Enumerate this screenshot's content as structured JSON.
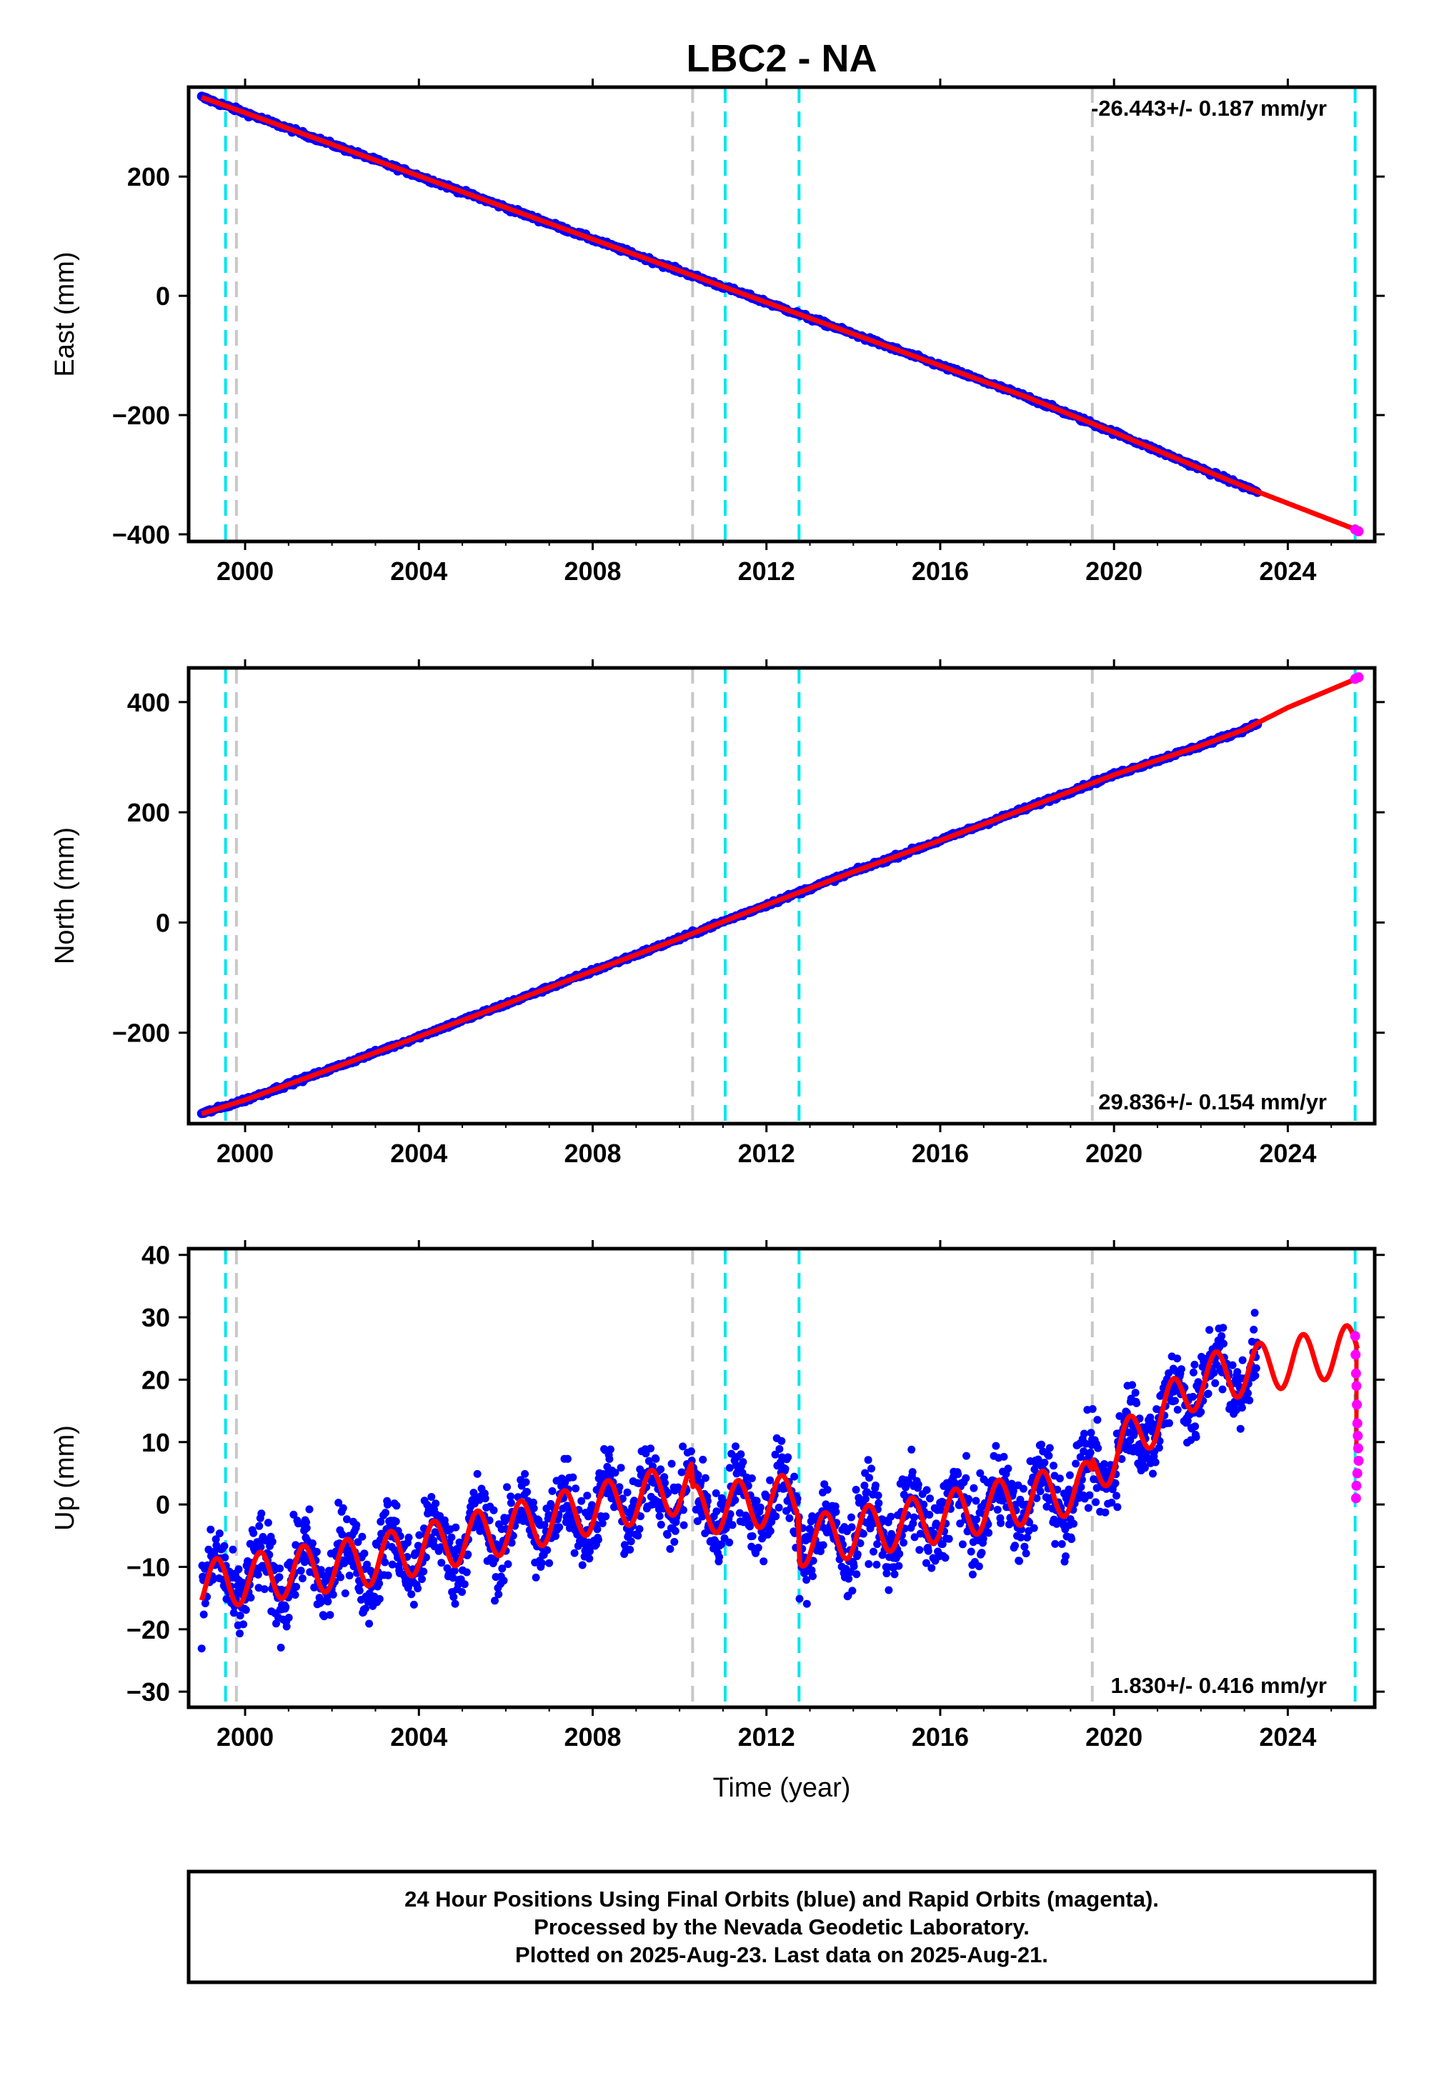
{
  "chart_data": [
    {
      "type": "scatter",
      "panel": "east",
      "title": "LBC2 - NA",
      "ylabel": "East (mm)",
      "xlabel": "",
      "xlim": [
        1998.7,
        2026.0
      ],
      "ylim": [
        -412,
        350
      ],
      "yticks": [
        -400,
        -200,
        0,
        200
      ],
      "xticks": [
        2000,
        2004,
        2008,
        2012,
        2016,
        2020,
        2024
      ],
      "rate_label": "-26.443+/- 0.187 mm/yr",
      "rate_position": "top-right",
      "model_points": [
        [
          1999.0,
          333
        ],
        [
          2000.0,
          307
        ],
        [
          2002.0,
          254
        ],
        [
          2004.0,
          201
        ],
        [
          2006.0,
          148
        ],
        [
          2008.0,
          95
        ],
        [
          2010.0,
          42
        ],
        [
          2012.0,
          -11
        ],
        [
          2014.0,
          -64
        ],
        [
          2016.0,
          -117
        ],
        [
          2018.0,
          -170
        ],
        [
          2020.0,
          -229
        ],
        [
          2022.0,
          -290
        ],
        [
          2023.0,
          -320
        ],
        [
          2024.0,
          -348
        ],
        [
          2025.6,
          -393
        ]
      ],
      "final_orbit_range": [
        1999.0,
        2023.3
      ],
      "rapid_orbit_points": [
        [
          2025.55,
          -392
        ],
        [
          2025.63,
          -395
        ]
      ],
      "grid": false
    },
    {
      "type": "scatter",
      "panel": "north",
      "ylabel": "North (mm)",
      "xlabel": "",
      "xlim": [
        1998.7,
        2026.0
      ],
      "ylim": [
        -365,
        462
      ],
      "yticks": [
        -200,
        0,
        200,
        400
      ],
      "xticks": [
        2000,
        2004,
        2008,
        2012,
        2016,
        2020,
        2024
      ],
      "rate_label": "29.836+/- 0.154 mm/yr",
      "rate_position": "bottom-right",
      "model_points": [
        [
          1999.0,
          -347
        ],
        [
          2000.0,
          -322
        ],
        [
          2002.0,
          -265
        ],
        [
          2004.0,
          -207
        ],
        [
          2006.0,
          -148
        ],
        [
          2008.0,
          -88
        ],
        [
          2010.0,
          -29
        ],
        [
          2012.0,
          32
        ],
        [
          2014.0,
          92
        ],
        [
          2016.0,
          149
        ],
        [
          2018.0,
          208
        ],
        [
          2020.0,
          268
        ],
        [
          2022.0,
          321
        ],
        [
          2023.0,
          350
        ],
        [
          2024.0,
          390
        ],
        [
          2025.6,
          443
        ]
      ],
      "final_orbit_range": [
        1999.0,
        2023.3
      ],
      "rapid_orbit_points": [
        [
          2025.55,
          442
        ],
        [
          2025.63,
          445
        ]
      ],
      "grid": false
    },
    {
      "type": "scatter",
      "panel": "up",
      "ylabel": "Up (mm)",
      "xlabel": "Time (year)",
      "xlim": [
        1998.7,
        2026.0
      ],
      "ylim": [
        -32.5,
        41
      ],
      "yticks": [
        -30,
        -20,
        -10,
        0,
        10,
        20,
        30,
        40
      ],
      "xticks": [
        2000,
        2004,
        2008,
        2012,
        2016,
        2020,
        2024
      ],
      "rate_label": "1.830+/- 0.416 mm/yr",
      "rate_position": "bottom-right",
      "model_trend_segments": [
        {
          "from": 1999.0,
          "to": 2002.9,
          "start": -13,
          "end": -9
        },
        {
          "from": 2002.9,
          "to": 2010.3,
          "start": -9,
          "end": 3
        },
        {
          "from": 2010.3,
          "to": 2012.75,
          "start": -1,
          "end": 1
        },
        {
          "from": 2012.75,
          "to": 2015.3,
          "start": -6,
          "end": -3
        },
        {
          "from": 2015.3,
          "to": 2019.5,
          "start": -3,
          "end": 3
        },
        {
          "from": 2019.5,
          "to": 2022.0,
          "start": 5,
          "end": 20
        },
        {
          "from": 2022.0,
          "to": 2025.6,
          "start": 20,
          "end": 25
        }
      ],
      "seasonal_amplitude": 4,
      "final_orbit_range": [
        1999.0,
        2023.3
      ],
      "rapid_orbit_points": [
        [
          2025.55,
          27
        ],
        [
          2025.56,
          24
        ],
        [
          2025.57,
          21
        ],
        [
          2025.58,
          19
        ],
        [
          2025.59,
          16
        ],
        [
          2025.6,
          13
        ],
        [
          2025.61,
          11
        ],
        [
          2025.62,
          9
        ],
        [
          2025.63,
          7
        ],
        [
          2025.6,
          5
        ],
        [
          2025.58,
          3
        ],
        [
          2025.57,
          1
        ]
      ],
      "grid": false
    }
  ],
  "event_lines": {
    "cyan": [
      1999.55,
      2011.05,
      2012.75,
      2025.55
    ],
    "gray": [
      1999.8,
      2010.3,
      2019.5
    ]
  },
  "colors": {
    "final_orbit": "#0000ff",
    "rapid_orbit": "#ff00ff",
    "model": "#ff0000",
    "cyan_line": "#00e5ee",
    "gray_line": "#c8c8c8"
  },
  "footer": {
    "line1": "24 Hour Positions Using Final Orbits (blue) and Rapid Orbits (magenta).",
    "line2": "Processed by the Nevada Geodetic Laboratory.",
    "line3": "Plotted on 2025-Aug-23. Last data on 2025-Aug-21."
  }
}
